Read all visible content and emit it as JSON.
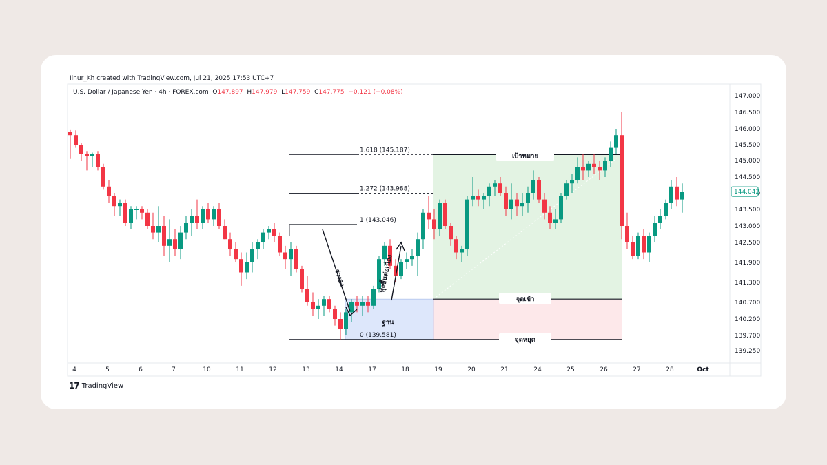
{
  "header": {
    "credit": "Ilnur_Kh created with TradingView.com, Jul 21, 2025 17:53 UTC+7",
    "symbol": "U.S. Dollar / Japanese Yen · 4h · FOREX.com",
    "o_key": "O",
    "o_val": "147.897",
    "h_key": "H",
    "h_val": "147.979",
    "l_key": "L",
    "l_val": "147.759",
    "c_key": "C",
    "c_val": "147.775",
    "change": "−0.121 (−0.08%)"
  },
  "footer": {
    "brand": "TradingView",
    "logo": "17"
  },
  "chart_data": {
    "type": "candlestick",
    "colors": {
      "up": "#089981",
      "down": "#f23645",
      "target_zone": "#e3f3e3",
      "stop_zone": "#fde8ea",
      "base_zone": "#dde7fb",
      "last_price": "#089981"
    },
    "y_ticks": [
      147.0,
      146.5,
      146.0,
      145.5,
      145.0,
      144.5,
      144.0,
      143.5,
      143.0,
      142.5,
      141.9,
      141.3,
      140.7,
      140.2,
      139.7,
      139.25
    ],
    "y_tick_labels": [
      "147.000",
      "146.500",
      "146.000",
      "145.500",
      "145.000",
      "144.500",
      "144.000",
      "143.500",
      "143.000",
      "142.500",
      "141.900",
      "141.300",
      "140.700",
      "140.200",
      "139.700",
      "139.250"
    ],
    "x_labels": [
      {
        "label": "4",
        "i": 0
      },
      {
        "label": "5",
        "i": 6
      },
      {
        "label": "6",
        "i": 12
      },
      {
        "label": "7",
        "i": 18
      },
      {
        "label": "10",
        "i": 24
      },
      {
        "label": "11",
        "i": 30
      },
      {
        "label": "12",
        "i": 36
      },
      {
        "label": "13",
        "i": 42
      },
      {
        "label": "14",
        "i": 48
      },
      {
        "label": "17",
        "i": 54
      },
      {
        "label": "18",
        "i": 60
      },
      {
        "label": "19",
        "i": 66
      },
      {
        "label": "20",
        "i": 72
      },
      {
        "label": "21",
        "i": 78
      },
      {
        "label": "24",
        "i": 84
      },
      {
        "label": "25",
        "i": 90
      },
      {
        "label": "26",
        "i": 96
      },
      {
        "label": "27",
        "i": 102
      },
      {
        "label": "28",
        "i": 108
      },
      {
        "label": "Oct",
        "i": 114
      }
    ],
    "last_price": "144.042",
    "last_price_value": 144.042,
    "fib_levels": [
      {
        "label": "1.618 (145.187)",
        "value": 145.187
      },
      {
        "label": "1.272 (143.988)",
        "value": 143.988
      },
      {
        "label": "1 (143.046)",
        "value": 143.046
      },
      {
        "label": "0 (139.581)",
        "value": 139.581
      }
    ],
    "zones": {
      "target_label": "เป้าหมาย",
      "entry_label": "จุดเข้า",
      "stop_label": "จุดหยุด",
      "base_label": "ฐาน",
      "target_value": 145.187,
      "entry_value": 140.8,
      "stop_value": 139.581,
      "base_top": 140.8
    },
    "wave_labels": {
      "down": "ร่วงลง",
      "up": "พุ่งขึ้นต่อเนื่อง"
    },
    "candles": [
      [
        145.9,
        145.98,
        145.05,
        145.8
      ],
      [
        145.8,
        145.95,
        145.4,
        145.5
      ],
      [
        145.5,
        145.55,
        145.0,
        145.2
      ],
      [
        145.2,
        145.3,
        144.7,
        145.15
      ],
      [
        145.15,
        145.25,
        144.8,
        145.2
      ],
      [
        145.2,
        145.3,
        144.7,
        144.8
      ],
      [
        144.8,
        144.9,
        144.1,
        144.2
      ],
      [
        144.2,
        144.4,
        143.7,
        143.9
      ],
      [
        143.9,
        144.0,
        143.3,
        143.6
      ],
      [
        143.6,
        143.8,
        143.3,
        143.7
      ],
      [
        143.7,
        143.8,
        143.0,
        143.1
      ],
      [
        143.1,
        143.6,
        142.9,
        143.5
      ],
      [
        143.5,
        143.6,
        143.2,
        143.5
      ],
      [
        143.5,
        143.6,
        143.2,
        143.4
      ],
      [
        143.4,
        143.5,
        142.9,
        143.0
      ],
      [
        143.0,
        143.4,
        142.6,
        142.8
      ],
      [
        142.8,
        143.6,
        142.5,
        143.0
      ],
      [
        143.0,
        143.3,
        142.1,
        142.4
      ],
      [
        142.4,
        143.2,
        141.9,
        142.6
      ],
      [
        142.6,
        142.9,
        142.1,
        142.3
      ],
      [
        142.3,
        143.0,
        142.0,
        142.8
      ],
      [
        142.8,
        143.3,
        142.6,
        143.1
      ],
      [
        143.1,
        143.5,
        142.7,
        143.3
      ],
      [
        143.3,
        143.8,
        142.9,
        143.1
      ],
      [
        143.1,
        143.6,
        142.9,
        143.5
      ],
      [
        143.5,
        143.7,
        143.1,
        143.2
      ],
      [
        143.2,
        143.6,
        143.0,
        143.5
      ],
      [
        143.5,
        143.7,
        142.9,
        143.0
      ],
      [
        143.0,
        143.2,
        142.6,
        142.6
      ],
      [
        142.6,
        142.8,
        142.1,
        142.3
      ],
      [
        142.3,
        142.5,
        141.9,
        142.0
      ],
      [
        142.0,
        142.2,
        141.2,
        141.6
      ],
      [
        141.6,
        142.2,
        141.4,
        141.9
      ],
      [
        141.9,
        142.5,
        141.6,
        142.3
      ],
      [
        142.3,
        142.6,
        142.0,
        142.5
      ],
      [
        142.5,
        142.9,
        142.3,
        142.8
      ],
      [
        142.8,
        143.0,
        142.6,
        142.9
      ],
      [
        142.9,
        143.1,
        142.5,
        142.7
      ],
      [
        142.7,
        142.8,
        142.1,
        142.2
      ],
      [
        142.2,
        142.4,
        141.7,
        142.0
      ],
      [
        142.0,
        142.5,
        141.5,
        142.3
      ],
      [
        142.3,
        142.4,
        141.6,
        141.7
      ],
      [
        141.7,
        141.8,
        141.0,
        141.1
      ],
      [
        141.1,
        141.5,
        140.6,
        140.7
      ],
      [
        140.7,
        141.0,
        140.3,
        140.5
      ],
      [
        140.5,
        140.8,
        140.2,
        140.6
      ],
      [
        140.6,
        140.9,
        140.3,
        140.8
      ],
      [
        140.8,
        140.9,
        140.4,
        140.5
      ],
      [
        140.5,
        140.6,
        140.0,
        140.2
      ],
      [
        140.2,
        140.4,
        139.58,
        139.9
      ],
      [
        139.9,
        140.5,
        139.7,
        140.4
      ],
      [
        140.4,
        140.8,
        140.1,
        140.7
      ],
      [
        140.7,
        140.9,
        140.4,
        140.6
      ],
      [
        140.6,
        140.9,
        140.3,
        140.7
      ],
      [
        140.7,
        140.9,
        140.4,
        140.6
      ],
      [
        140.6,
        141.2,
        140.5,
        141.1
      ],
      [
        141.1,
        142.1,
        141.0,
        142.0
      ],
      [
        142.0,
        142.5,
        141.8,
        142.4
      ],
      [
        142.4,
        142.6,
        141.7,
        141.8
      ],
      [
        141.8,
        142.0,
        141.3,
        141.5
      ],
      [
        141.5,
        142.0,
        141.4,
        141.9
      ],
      [
        141.9,
        142.2,
        141.7,
        142.0
      ],
      [
        142.0,
        142.3,
        141.8,
        142.1
      ],
      [
        142.1,
        142.8,
        141.5,
        142.6
      ],
      [
        142.6,
        143.5,
        142.3,
        143.4
      ],
      [
        143.4,
        143.9,
        142.9,
        143.2
      ],
      [
        143.2,
        143.5,
        142.6,
        142.9
      ],
      [
        142.9,
        143.8,
        142.7,
        143.7
      ],
      [
        143.7,
        143.8,
        142.9,
        143.0
      ],
      [
        143.0,
        143.1,
        142.4,
        142.6
      ],
      [
        142.6,
        142.7,
        142.0,
        142.2
      ],
      [
        142.2,
        142.4,
        141.9,
        142.3
      ],
      [
        142.3,
        143.9,
        142.1,
        143.8
      ],
      [
        143.8,
        144.5,
        143.6,
        143.9
      ],
      [
        143.9,
        144.1,
        143.6,
        143.8
      ],
      [
        143.8,
        144.0,
        143.5,
        143.9
      ],
      [
        143.9,
        144.3,
        143.6,
        144.2
      ],
      [
        144.2,
        144.4,
        143.9,
        144.3
      ],
      [
        144.3,
        144.5,
        143.9,
        144.0
      ],
      [
        144.0,
        144.2,
        143.3,
        143.5
      ],
      [
        143.5,
        144.3,
        143.2,
        143.8
      ],
      [
        143.8,
        144.0,
        143.3,
        143.6
      ],
      [
        143.6,
        144.0,
        143.3,
        143.7
      ],
      [
        143.7,
        144.2,
        143.4,
        144.0
      ],
      [
        144.0,
        144.7,
        143.8,
        144.4
      ],
      [
        144.4,
        144.5,
        143.7,
        143.8
      ],
      [
        143.8,
        144.0,
        143.2,
        143.4
      ],
      [
        143.4,
        143.6,
        142.9,
        143.1
      ],
      [
        143.1,
        143.5,
        142.9,
        143.2
      ],
      [
        143.2,
        144.0,
        143.1,
        143.9
      ],
      [
        143.9,
        144.4,
        143.8,
        144.3
      ],
      [
        144.3,
        144.6,
        144.0,
        144.4
      ],
      [
        144.4,
        145.1,
        144.3,
        144.8
      ],
      [
        144.8,
        145.2,
        144.4,
        144.7
      ],
      [
        144.7,
        145.0,
        144.5,
        144.9
      ],
      [
        144.9,
        145.2,
        144.6,
        144.8
      ],
      [
        144.8,
        145.0,
        144.4,
        144.7
      ],
      [
        144.7,
        145.1,
        144.5,
        145.0
      ],
      [
        145.0,
        145.6,
        144.8,
        145.4
      ],
      [
        145.4,
        146.0,
        145.2,
        145.8
      ],
      [
        145.8,
        146.5,
        142.6,
        143.0
      ],
      [
        143.0,
        143.4,
        142.3,
        142.5
      ],
      [
        142.5,
        142.7,
        142.0,
        142.1
      ],
      [
        142.1,
        142.8,
        142.0,
        142.7
      ],
      [
        142.7,
        142.9,
        142.0,
        142.2
      ],
      [
        142.2,
        142.8,
        141.9,
        142.7
      ],
      [
        142.7,
        143.3,
        142.5,
        143.1
      ],
      [
        143.1,
        143.5,
        142.9,
        143.3
      ],
      [
        143.3,
        143.8,
        143.2,
        143.7
      ],
      [
        143.7,
        144.4,
        143.5,
        144.2
      ],
      [
        144.2,
        144.5,
        143.6,
        143.8
      ],
      [
        143.8,
        144.3,
        143.4,
        144.04
      ]
    ]
  }
}
